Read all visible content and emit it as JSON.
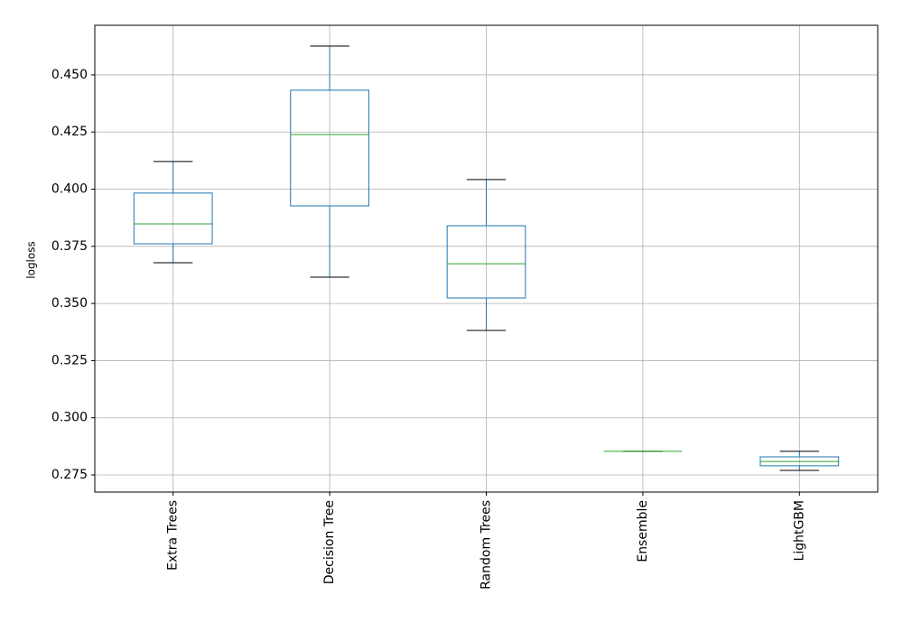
{
  "chart_data": {
    "type": "box",
    "y_label": "logloss",
    "categories": [
      "Extra Trees",
      "Decision Tree",
      "Random Trees",
      "Ensemble",
      "LightGBM"
    ],
    "boxes": [
      {
        "whislo": 0.3678,
        "q1": 0.3761,
        "med": 0.3848,
        "q3": 0.3983,
        "whishi": 0.4121
      },
      {
        "whislo": 0.3615,
        "q1": 0.3927,
        "med": 0.4239,
        "q3": 0.4433,
        "whishi": 0.4626
      },
      {
        "whislo": 0.3382,
        "q1": 0.3524,
        "med": 0.3674,
        "q3": 0.384,
        "whishi": 0.4042
      },
      {
        "whislo": 0.2853,
        "q1": 0.2853,
        "med": 0.2853,
        "q3": 0.2853,
        "whishi": 0.2853
      },
      {
        "whislo": 0.277,
        "q1": 0.279,
        "med": 0.2809,
        "q3": 0.2829,
        "whishi": 0.2853
      }
    ],
    "box_color": "#1f77b4",
    "median_color": "#2ca02c",
    "cap_color": "#000000",
    "ylim": [
      0.2675,
      0.4717
    ],
    "yticks": [
      0.275,
      {
        "value": 0.3,
        "label": "0.300"
      },
      0.325,
      {
        "value": 0.35,
        "label": "0.350"
      },
      0.375,
      {
        "value": 0.4,
        "label": "0.400"
      },
      0.425,
      {
        "value": 0.45,
        "label": "0.450"
      }
    ],
    "grid": true
  }
}
